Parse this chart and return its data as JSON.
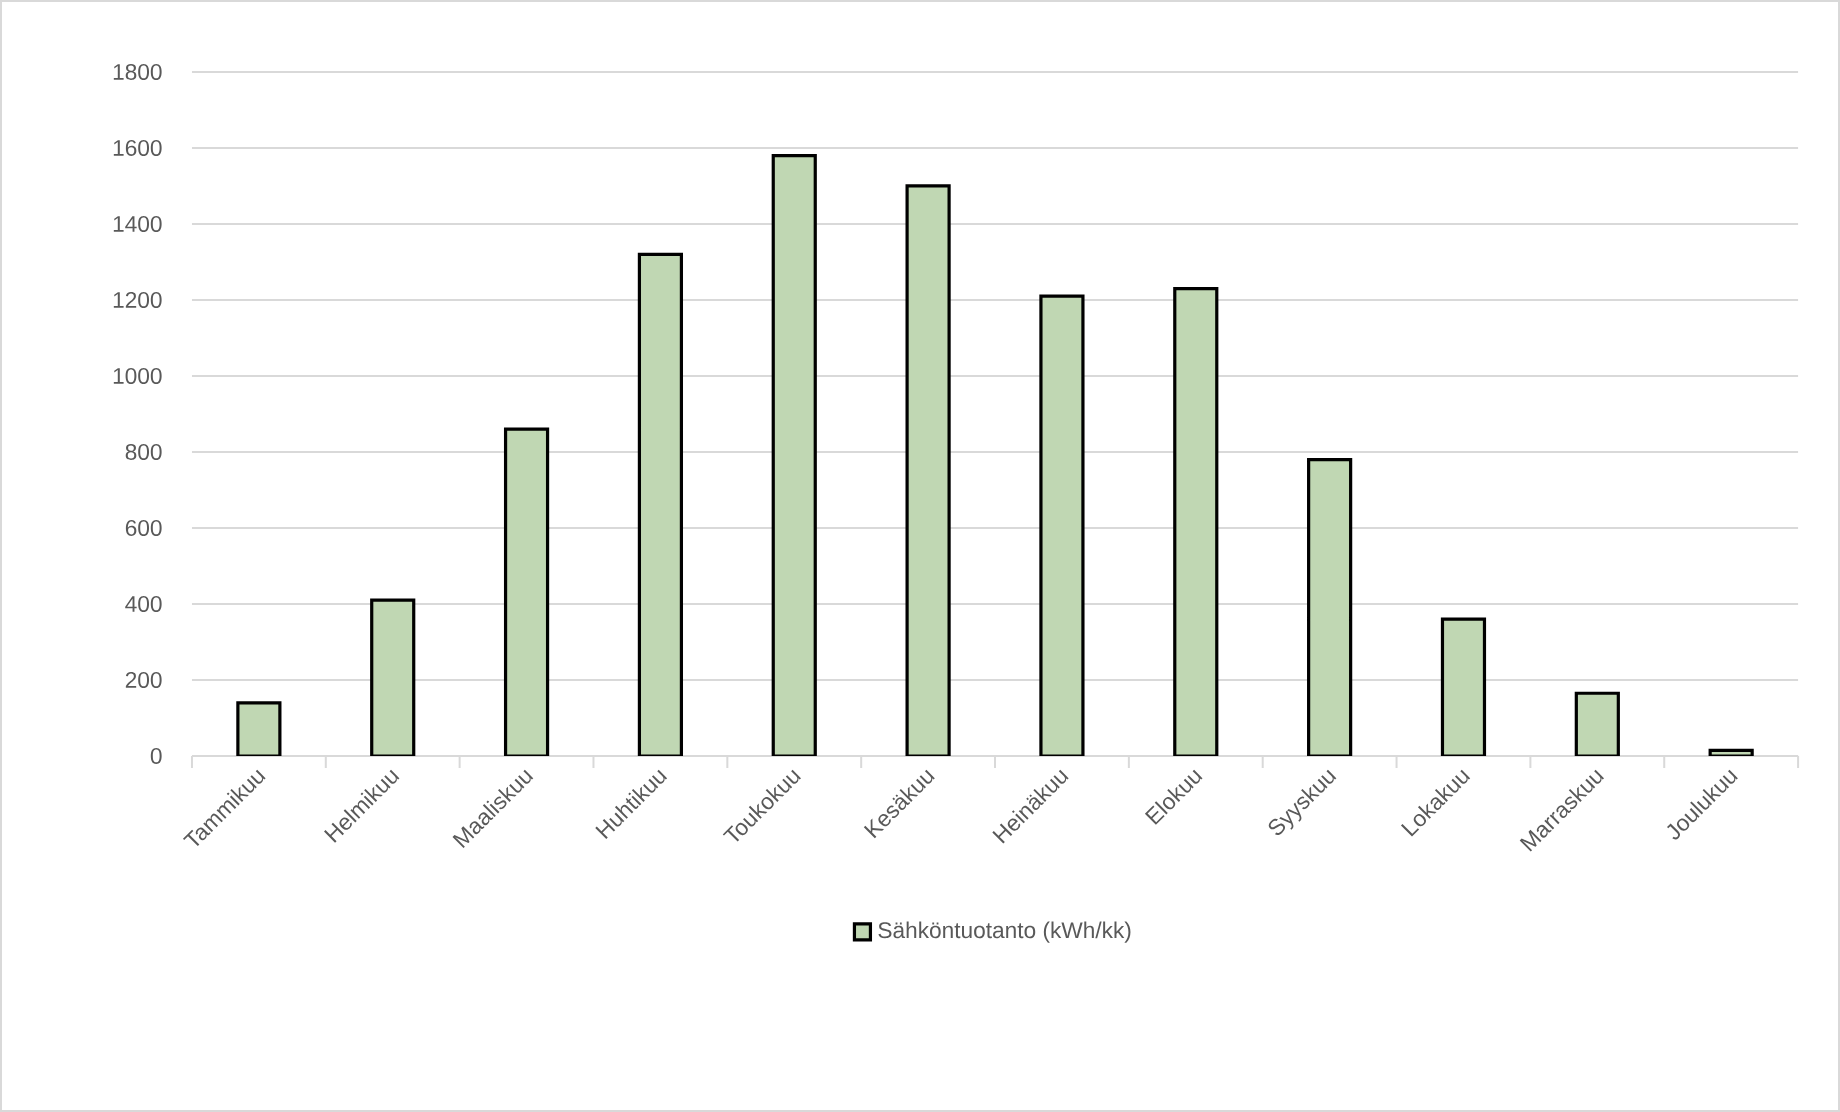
{
  "chart_data": {
    "type": "bar",
    "categories": [
      "Tammikuu",
      "Helmikuu",
      "Maaliskuu",
      "Huhtikuu",
      "Toukokuu",
      "Kesäkuu",
      "Heinäkuu",
      "Elokuu",
      "Syyskuu",
      "Lokakuu",
      "Marraskuu",
      "Joulukuu"
    ],
    "series": [
      {
        "name": "Sähköntuotanto (kWh/kk)",
        "color": "#c0d7b3",
        "values": [
          140,
          410,
          860,
          1320,
          1580,
          1500,
          1210,
          1230,
          780,
          360,
          165,
          15
        ]
      }
    ],
    "ylim": [
      0,
      1800
    ],
    "yticks": [
      0,
      200,
      400,
      600,
      800,
      1000,
      1200,
      1400,
      1600,
      1800
    ],
    "grid": "y",
    "legend": "bottom"
  }
}
